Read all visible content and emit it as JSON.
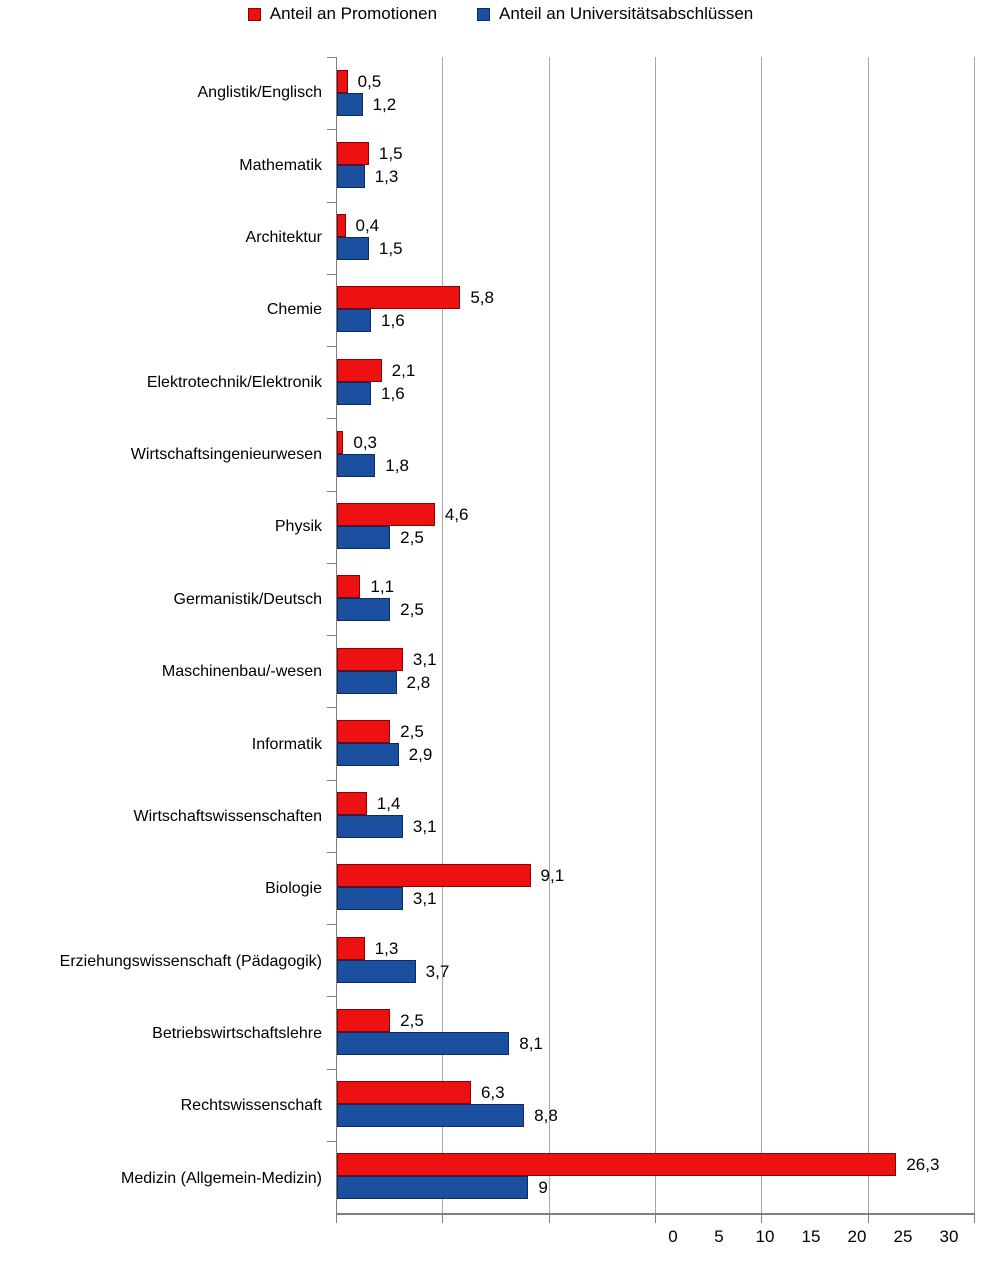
{
  "chart_data": {
    "type": "bar",
    "orientation": "horizontal",
    "title": "",
    "xlabel": "",
    "ylabel": "",
    "xlim": [
      0,
      30
    ],
    "xticks": [
      0,
      5,
      10,
      15,
      20,
      25,
      30
    ],
    "xtick_labels": [
      "0",
      "5",
      "10",
      "15",
      "20",
      "25",
      "30"
    ],
    "grid": true,
    "legend_position": "top",
    "categories": [
      "Anglistik/Englisch",
      "Mathematik",
      "Architektur",
      "Chemie",
      "Elektrotechnik/Elektronik",
      "Wirtschaftsingenieurwesen",
      "Physik",
      "Germanistik/Deutsch",
      "Maschinenbau/-wesen",
      "Informatik",
      "Wirtschaftswissenschaften",
      "Biologie",
      "Erziehungswissenschaft (Pädagogik)",
      "Betriebswirtschaftslehre",
      "Rechtswissenschaft",
      "Medizin (Allgemein-Medizin)"
    ],
    "series": [
      {
        "name": "Anteil an Promotionen",
        "color": "#EE1111",
        "border_color": "#8B0000",
        "values": [
          0.5,
          1.5,
          0.4,
          5.8,
          2.1,
          0.3,
          4.6,
          1.1,
          3.1,
          2.5,
          1.4,
          9.1,
          1.3,
          2.5,
          6.3,
          26.3
        ],
        "labels": [
          "0,5",
          "1,5",
          "0,4",
          "5,8",
          "2,1",
          "0,3",
          "4,6",
          "1,1",
          "3,1",
          "2,5",
          "1,4",
          "9,1",
          "1,3",
          "2,5",
          "6,3",
          "26,3"
        ]
      },
      {
        "name": "Anteil an Universitätsabschlüssen",
        "color": "#1B4FA0",
        "border_color": "#0E2B61",
        "values": [
          1.2,
          1.3,
          1.5,
          1.6,
          1.6,
          1.8,
          2.5,
          2.5,
          2.8,
          2.9,
          3.1,
          3.1,
          3.7,
          8.1,
          8.8,
          9
        ],
        "labels": [
          "1,2",
          "1,3",
          "1,5",
          "1,6",
          "1,6",
          "1,8",
          "2,5",
          "2,5",
          "2,8",
          "2,9",
          "3,1",
          "3,1",
          "3,7",
          "8,1",
          "8,8",
          "9"
        ]
      }
    ],
    "colors": {
      "gridline": "#A6A6A6",
      "axis": "#7F7F7F",
      "text": "#000000",
      "background": "#FFFFFF"
    }
  }
}
